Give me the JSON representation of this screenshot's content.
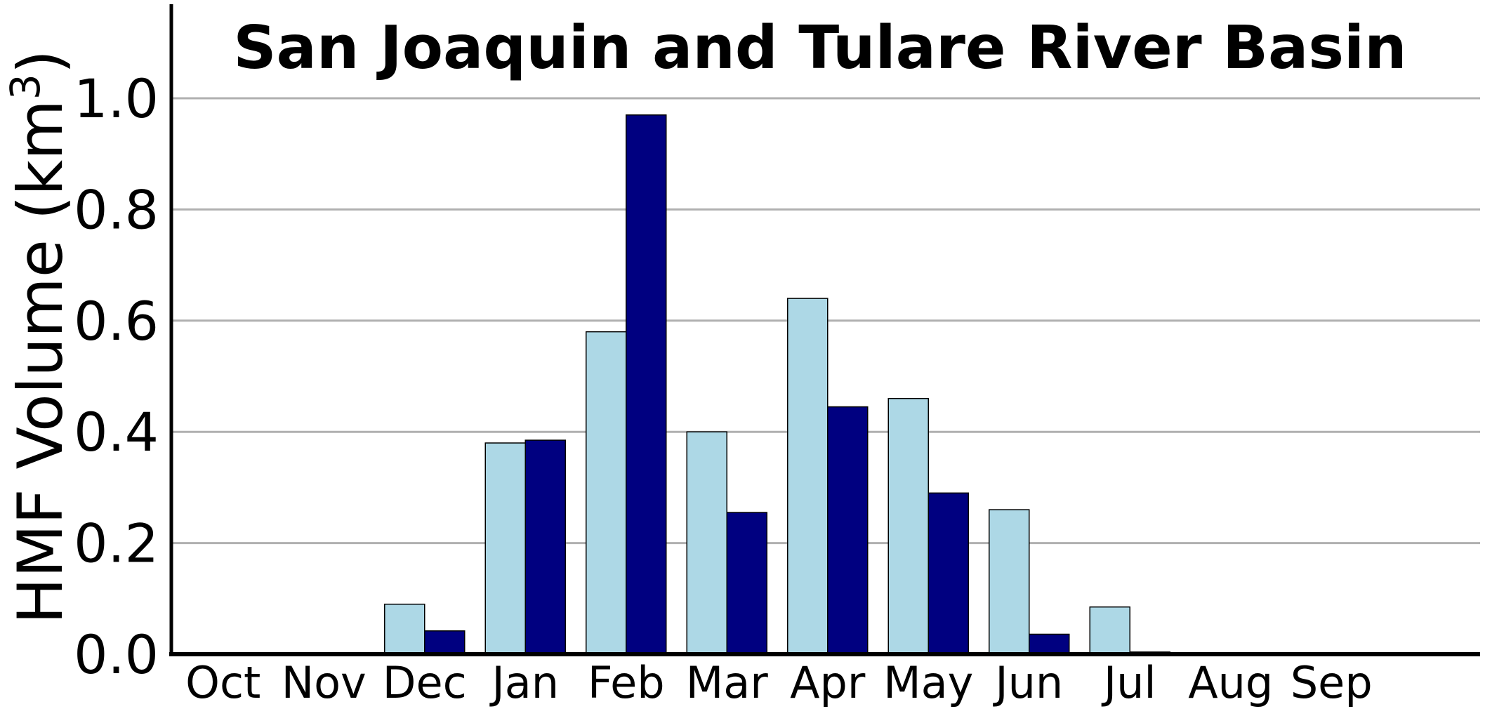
{
  "chart_data": {
    "type": "bar",
    "title": "San Joaquin and Tulare River Basin",
    "ylabel": "HMF Volume (km",
    "ylabel_sup": "3",
    "ylabel_close": ")",
    "xlabel": "",
    "categories": [
      "Oct",
      "Nov",
      "Dec",
      "Jan",
      "Feb",
      "Mar",
      "Apr",
      "May",
      "Jun",
      "Jul",
      "Aug",
      "Sep"
    ],
    "ylim": [
      0,
      1.15
    ],
    "yticks": [
      0.0,
      0.2,
      0.4,
      0.6,
      0.8,
      1.0
    ],
    "ytick_labels": [
      "0.0",
      "0.2",
      "0.4",
      "0.6",
      "0.8",
      "1.0"
    ],
    "grid": "horizontal",
    "series": [
      {
        "color": "#add8e6",
        "values": [
          0,
          0,
          0.09,
          0.38,
          0.58,
          0.4,
          0.64,
          0.46,
          0.26,
          0.085,
          0,
          0
        ]
      },
      {
        "color": "#000080",
        "values": [
          0,
          0,
          0.042,
          0.385,
          0.97,
          0.255,
          0.445,
          0.29,
          0.036,
          0.004,
          0,
          0
        ]
      }
    ]
  }
}
